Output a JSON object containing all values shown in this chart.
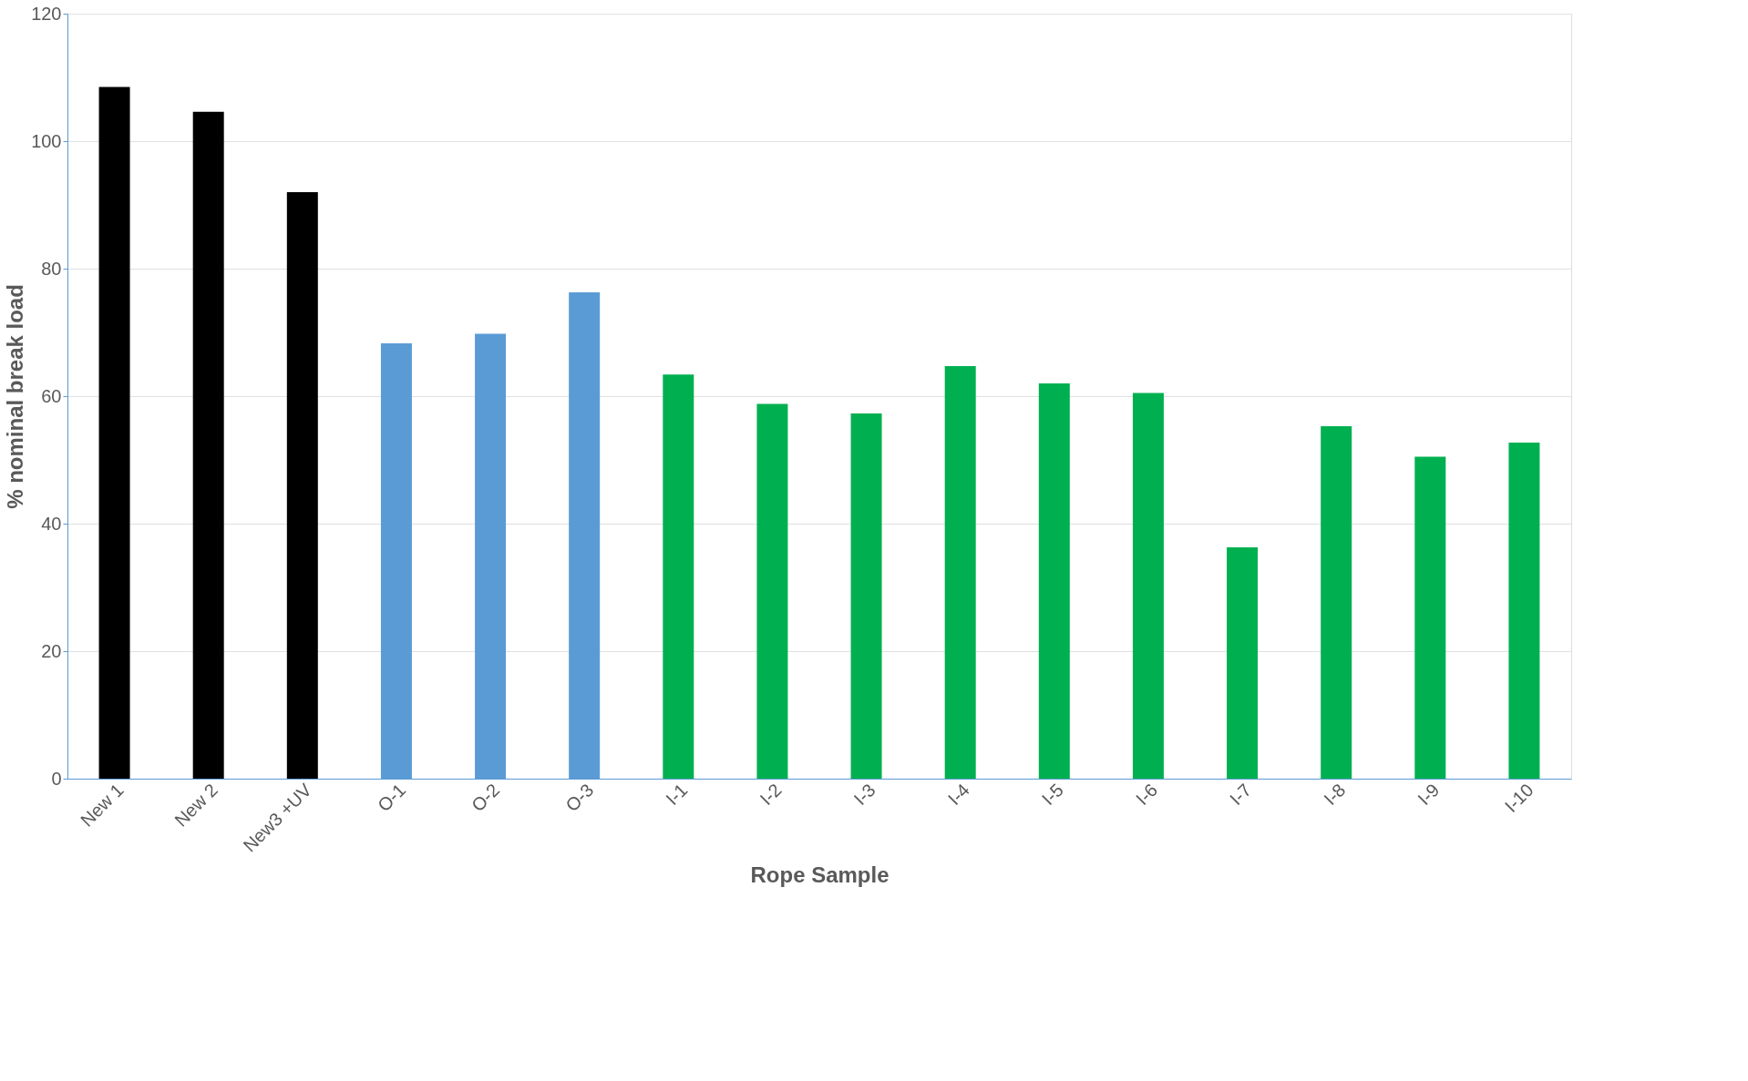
{
  "chart_data": {
    "type": "bar",
    "xlabel": "Rope Sample",
    "ylabel": "% nominal break load",
    "categories": [
      "New 1",
      "New 2",
      "New3 +UV",
      "O-1",
      "O-2",
      "O-3",
      "I-1",
      "I-2",
      "I-3",
      "I-4",
      "I-5",
      "I-6",
      "I-7",
      "I-8",
      "I-9",
      "I-10"
    ],
    "values": [
      108.5,
      104.6,
      92,
      68.3,
      69.8,
      76.3,
      63.4,
      58.8,
      57.3,
      64.7,
      62,
      60.5,
      36.3,
      55.3,
      50.5,
      52.7
    ],
    "colors": [
      "#000000",
      "#000000",
      "#000000",
      "#5b9bd5",
      "#5b9bd5",
      "#5b9bd5",
      "#00b050",
      "#00b050",
      "#00b050",
      "#00b050",
      "#00b050",
      "#00b050",
      "#00b050",
      "#00b050",
      "#00b050",
      "#00b050"
    ],
    "ylim": [
      0,
      120
    ],
    "yticks": [
      0,
      20,
      40,
      60,
      80,
      100,
      120
    ],
    "grid": "y",
    "legend": false
  }
}
